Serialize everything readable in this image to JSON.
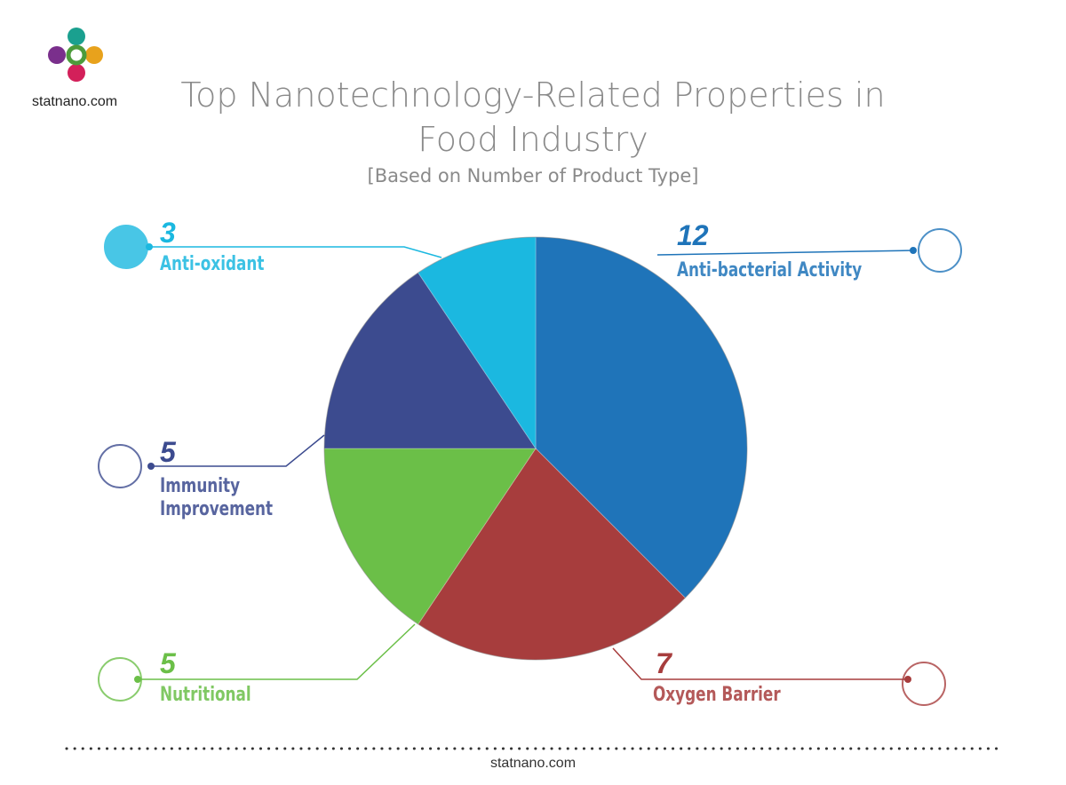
{
  "chart_data": {
    "type": "pie",
    "title": "Top Nanotechnology-Related Properties in Food Industry",
    "subtitle": "[Based on Number of Product Type]",
    "categories": [
      "Anti-bacterial Activity",
      "Oxygen Barrier",
      "Nutritional",
      "Immunity Improvement",
      "Anti-oxidant"
    ],
    "values": [
      12,
      7,
      5,
      5,
      3
    ],
    "colors": [
      "#1f74b9",
      "#a73d3d",
      "#6bbf48",
      "#3c4b8f",
      "#1bb8e0"
    ]
  },
  "logo_text": "statnano.com",
  "footer": "statnano.com"
}
